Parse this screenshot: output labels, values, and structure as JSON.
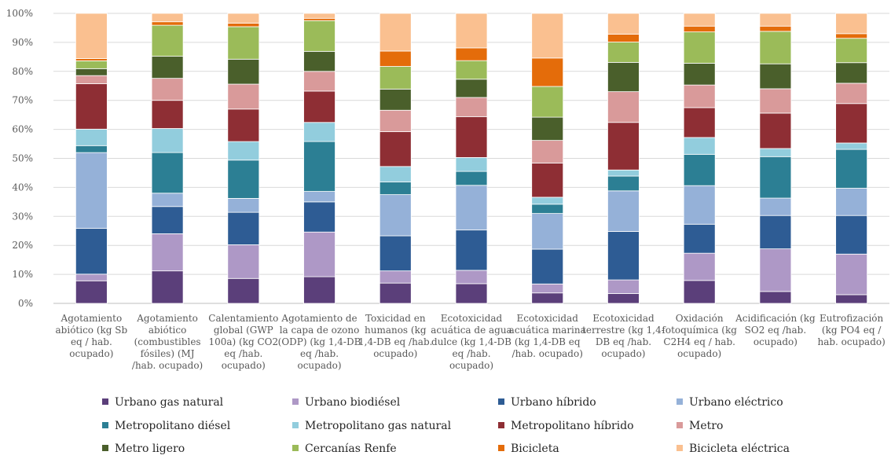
{
  "chart_data": {
    "type": "bar",
    "stacked": true,
    "percent_stacked": true,
    "ylim": [
      0,
      100
    ],
    "y_ticks": [
      "0%",
      "10%",
      "20%",
      "30%",
      "40%",
      "50%",
      "60%",
      "70%",
      "80%",
      "90%",
      "100%"
    ],
    "grid": true,
    "legend_position": "bottom",
    "categories": [
      [
        "Agotamiento",
        "abiótico (kg Sb",
        "eq / hab.",
        "ocupado)"
      ],
      [
        "Agotamiento",
        "abiótico",
        "(combustibles",
        "fósiles) (MJ",
        "/hab. ocupado)"
      ],
      [
        "Calentamiento",
        "global (GWP",
        "100a) (kg CO2",
        "eq /hab.",
        "ocupado)"
      ],
      [
        "Agotamiento de",
        "la capa de ozono",
        "(ODP) (kg 1,4-DB",
        "eq /hab.",
        "ocupado)"
      ],
      [
        "Toxicidad en",
        "humanos (kg",
        "1,4-DB eq /hab.",
        "ocupado)"
      ],
      [
        "Ecotoxicidad",
        "acuática de agua",
        "dulce (kg 1,4-DB",
        "eq /hab.",
        "ocupado)"
      ],
      [
        "Ecotoxicidad",
        "acuática marina",
        "(kg 1,4-DB eq",
        "/hab. ocupado)"
      ],
      [
        "Ecotoxicidad",
        "terrestre (kg 1,4-",
        "DB eq /hab.",
        "ocupado)"
      ],
      [
        "Oxidación",
        "fotoquímica (kg",
        "C2H4 eq / hab.",
        "ocupado)"
      ],
      [
        "Acidificación (kg",
        "SO2 eq /hab.",
        "ocupado)"
      ],
      [
        "Eutrofización",
        "(kg PO4 eq /",
        "hab. ocupado)"
      ]
    ],
    "series": [
      {
        "name": "Urbano gas natural",
        "color": "#5B3F7A",
        "values": [
          7.8,
          11.2,
          8.6,
          9.2,
          7.0,
          6.8,
          3.6,
          3.4,
          7.9,
          4.1,
          3.0
        ]
      },
      {
        "name": "Urbano biodiésel",
        "color": "#AE98C6",
        "values": [
          2.3,
          12.8,
          11.6,
          15.4,
          4.2,
          4.6,
          3.1,
          4.7,
          9.4,
          14.7,
          14.0
        ]
      },
      {
        "name": "Urbano híbrido",
        "color": "#2E5C94",
        "values": [
          15.8,
          9.4,
          11.2,
          10.4,
          12.1,
          13.9,
          12.0,
          16.7,
          10.0,
          11.5,
          13.3
        ]
      },
      {
        "name": "Urbano eléctrico",
        "color": "#95B1D8",
        "values": [
          26.2,
          4.6,
          4.8,
          3.6,
          14.2,
          15.4,
          12.3,
          14.0,
          13.3,
          6.0,
          9.4
        ]
      },
      {
        "name": "Metropolitano diésel",
        "color": "#2C7F94",
        "values": [
          2.4,
          14.0,
          13.2,
          17.2,
          4.4,
          4.8,
          3.2,
          5.1,
          10.8,
          14.3,
          13.4
        ]
      },
      {
        "name": "Metropolitano gas natural",
        "color": "#92CDDD",
        "values": [
          5.7,
          8.3,
          6.4,
          6.6,
          5.3,
          4.8,
          2.4,
          2.1,
          5.8,
          2.8,
          2.2
        ]
      },
      {
        "name": "Metropolitano híbrido",
        "color": "#8E2E34",
        "values": [
          15.7,
          9.7,
          11.2,
          10.8,
          12.0,
          14.1,
          11.8,
          16.4,
          10.3,
          12.2,
          13.6
        ]
      },
      {
        "name": "Metro",
        "color": "#D99A9A",
        "values": [
          2.8,
          7.6,
          8.6,
          6.8,
          7.4,
          6.6,
          7.8,
          10.6,
          7.8,
          8.4,
          7.0
        ]
      },
      {
        "name": "Metro ligero",
        "color": "#4A5F2B",
        "values": [
          2.4,
          7.6,
          8.6,
          6.9,
          7.3,
          6.3,
          8.0,
          10.1,
          7.5,
          8.6,
          7.1
        ]
      },
      {
        "name": "Cercanías Renfe",
        "color": "#9BBB59",
        "values": [
          2.7,
          10.7,
          11.2,
          10.6,
          7.8,
          6.4,
          10.6,
          7.0,
          10.8,
          11.2,
          8.4
        ]
      },
      {
        "name": "Bicicleta",
        "color": "#E46C0A",
        "values": [
          0.8,
          1.2,
          1.2,
          0.8,
          5.3,
          4.4,
          9.8,
          2.7,
          2.0,
          1.8,
          1.6
        ]
      },
      {
        "name": "Bicicleta eléctrica",
        "color": "#FAC090",
        "values": [
          15.6,
          2.9,
          3.4,
          1.7,
          13.0,
          11.9,
          15.4,
          7.2,
          4.4,
          4.4,
          7.0
        ]
      }
    ]
  }
}
